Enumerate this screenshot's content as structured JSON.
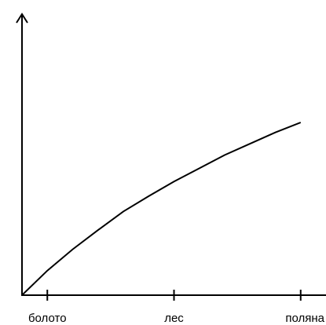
{
  "chart_data": {
    "type": "line",
    "title": "",
    "xlabel": "",
    "ylabel": "",
    "categories": [
      "болото",
      "лес",
      "поляна"
    ],
    "x": [
      0,
      0.5,
      1,
      1.5,
      2,
      2.5,
      3,
      3.5,
      4,
      4.5,
      5,
      5.5
    ],
    "series": [
      {
        "values": [
          0,
          0.37,
          0.69,
          0.98,
          1.26,
          1.49,
          1.71,
          1.91,
          2.11,
          2.28,
          2.45,
          2.6
        ]
      }
    ],
    "xlim": [
      0,
      5.5
    ],
    "ylim": [
      0,
      4.4
    ],
    "grid": false,
    "legend": "none",
    "axis_arrows": true
  }
}
